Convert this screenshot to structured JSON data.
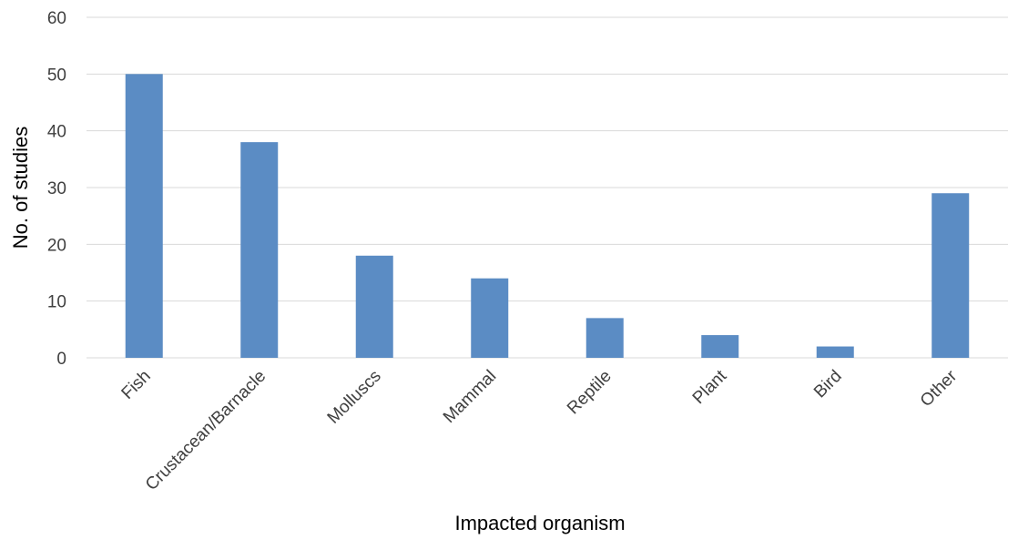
{
  "chart_data": {
    "type": "bar",
    "title": "",
    "xlabel": "Impacted organism",
    "ylabel": "No. of studies",
    "categories": [
      "Fish",
      "Crustacean/Barnacle",
      "Molluscs",
      "Mammal",
      "Reptile",
      "Plant",
      "Bird",
      "Other"
    ],
    "values": [
      50,
      38,
      18,
      14,
      7,
      4,
      2,
      29
    ],
    "ylim": [
      0,
      60
    ],
    "yticks": [
      0,
      10,
      20,
      30,
      40,
      50,
      60
    ],
    "grid": true,
    "legend": "none",
    "bar_color": "#5b8cc4"
  }
}
